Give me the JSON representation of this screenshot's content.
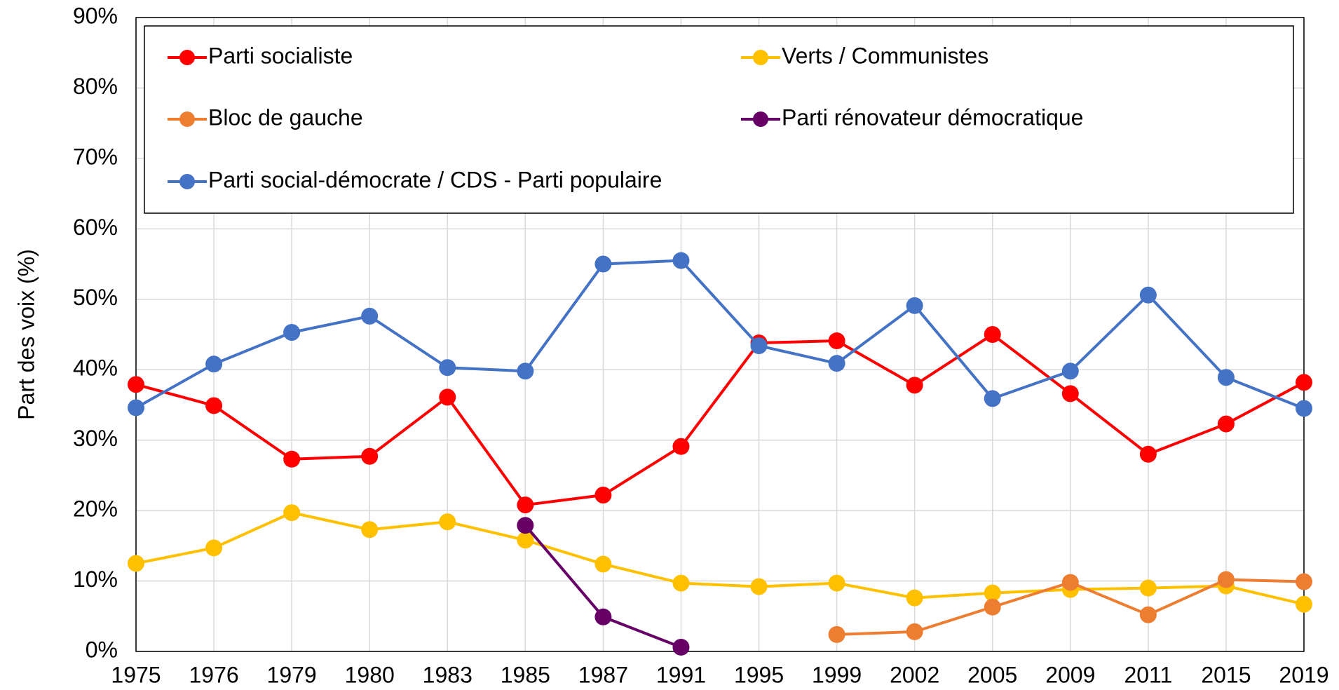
{
  "chart_data": {
    "type": "line",
    "y_label": "Part des voix (%)",
    "categories": [
      "1975",
      "1976",
      "1979",
      "1980",
      "1983",
      "1985",
      "1987",
      "1991",
      "1995",
      "1999",
      "2002",
      "2005",
      "2009",
      "2011",
      "2015",
      "2019"
    ],
    "ylim": [
      0,
      90
    ],
    "yticks": [
      {
        "value": 0,
        "label": "0%"
      },
      {
        "value": 10,
        "label": "10%"
      },
      {
        "value": 20,
        "label": "20%"
      },
      {
        "value": 30,
        "label": "30%"
      },
      {
        "value": 40,
        "label": "40%"
      },
      {
        "value": 50,
        "label": "50%"
      },
      {
        "value": 60,
        "label": "60%"
      },
      {
        "value": 70,
        "label": "70%"
      },
      {
        "value": 80,
        "label": "80%"
      },
      {
        "value": 90,
        "label": "90%"
      }
    ],
    "grid": true,
    "series": [
      {
        "name": "Parti socialiste",
        "color": "#ff0000",
        "values": [
          37.9,
          34.9,
          27.3,
          27.7,
          36.1,
          20.8,
          22.2,
          29.1,
          43.8,
          44.1,
          37.8,
          45.0,
          36.6,
          28.0,
          32.3,
          38.2
        ]
      },
      {
        "name": "Verts / Communistes",
        "color": "#ffc000",
        "values": [
          12.5,
          14.7,
          19.7,
          17.3,
          18.4,
          15.8,
          12.4,
          9.7,
          9.2,
          9.7,
          7.6,
          8.3,
          8.8,
          9.0,
          9.3,
          6.7
        ]
      },
      {
        "name": "Bloc de gauche",
        "color": "#ed7d31",
        "values": [
          null,
          null,
          null,
          null,
          null,
          null,
          null,
          null,
          null,
          2.4,
          2.8,
          6.3,
          9.8,
          5.2,
          10.2,
          9.9
        ]
      },
      {
        "name": "Parti rénovateur démocratique",
        "color": "#660066",
        "values": [
          null,
          null,
          null,
          null,
          null,
          17.9,
          4.9,
          0.6,
          null,
          null,
          null,
          null,
          null,
          null,
          null,
          null
        ]
      },
      {
        "name": "Parti social-démocrate / CDS - Parti populaire",
        "color": "#4472c4",
        "values": [
          34.6,
          40.8,
          45.3,
          47.6,
          40.3,
          39.8,
          55.0,
          55.5,
          43.4,
          40.9,
          49.1,
          35.9,
          39.8,
          50.6,
          38.9,
          34.5
        ]
      }
    ]
  }
}
